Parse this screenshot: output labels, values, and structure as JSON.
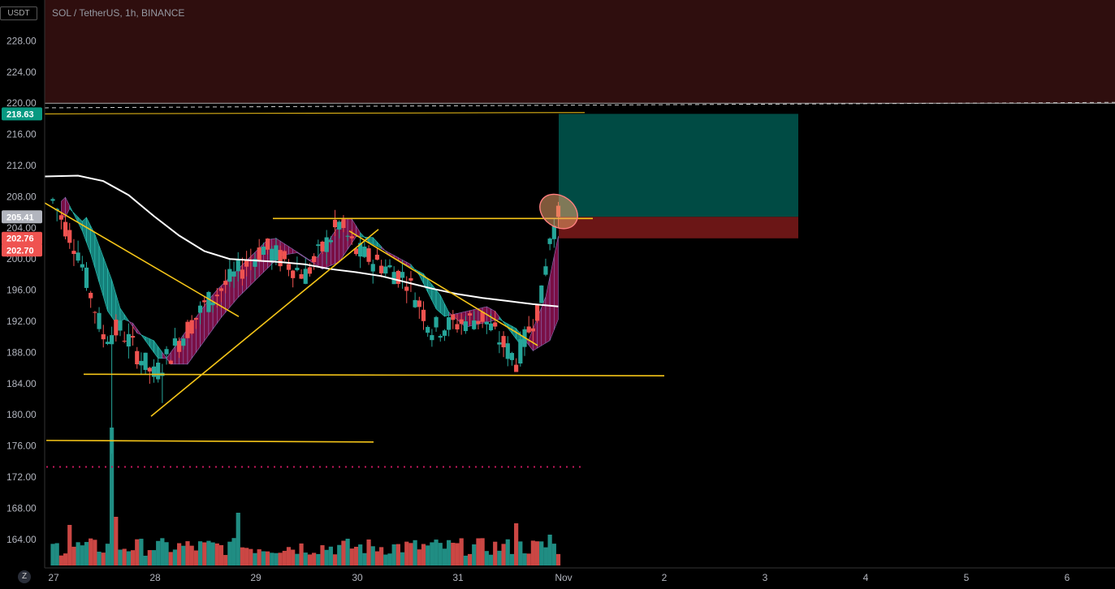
{
  "header": {
    "title": "SOL / TetherUS, 1h, BINANCE",
    "currency": "USDT",
    "scale_button": "Z"
  },
  "colors": {
    "background": "#000000",
    "up": "#26a69a",
    "down": "#ef5350",
    "cloud_bear": "#7a0f45",
    "cloud_bull": "#15807a",
    "ma": "#ffffff",
    "trendline": "#f5c518",
    "target_zone": "#004b44",
    "stop_zone": "#6b1616",
    "resistance_zone": "#2f0e0e"
  },
  "chart_data": {
    "type": "candlestick",
    "symbol": "SOL / TetherUS",
    "interval": "1h",
    "exchange": "BINANCE",
    "y_ticks": [
      "228.00",
      "224.00",
      "220.00",
      "216.00",
      "212.00",
      "208.00",
      "204.00",
      "200.00",
      "196.00",
      "192.00",
      "188.00",
      "184.00",
      "180.00",
      "176.00",
      "172.00",
      "168.00",
      "164.00"
    ],
    "ylim": [
      160,
      230
    ],
    "x_ticks": [
      "27",
      "28",
      "29",
      "30",
      "31",
      "Nov",
      "2",
      "3",
      "4",
      "5",
      "6"
    ],
    "price_labels": [
      {
        "value": "218.63",
        "color": "#089981"
      },
      {
        "value": "205.41",
        "color": "#b2b5be"
      },
      {
        "value": "202.76",
        "color": "#ef5350"
      },
      {
        "value": "202.70",
        "color": "#ef5350"
      }
    ],
    "ohlc_keypoints": [
      {
        "t": "27 00:00",
        "close": 207.5
      },
      {
        "t": "27 06:00",
        "close": 201.0
      },
      {
        "t": "27 12:00",
        "close": 190.0
      },
      {
        "t": "27 14:00",
        "low": 175.0
      },
      {
        "t": "28 00:00",
        "close": 185.0
      },
      {
        "t": "28 02:00",
        "low": 181.5
      },
      {
        "t": "28 12:00",
        "close": 194.0
      },
      {
        "t": "29 02:00",
        "close": 201.5
      },
      {
        "t": "29 12:00",
        "close": 198.0
      },
      {
        "t": "29 20:00",
        "close": 204.5
      },
      {
        "t": "30 00:00",
        "close": 201.0
      },
      {
        "t": "30 12:00",
        "close": 197.5
      },
      {
        "t": "30 18:00",
        "close": 191.0
      },
      {
        "t": "31 06:00",
        "close": 192.5
      },
      {
        "t": "31 14:00",
        "low": 186.0
      },
      {
        "t": "31 20:00",
        "close": 195.0
      },
      {
        "t": "31 22:00",
        "close": 202.7
      },
      {
        "t": "Nov 00:00",
        "close": 205.4
      }
    ],
    "levels": {
      "resistance_zone": [
        220,
        232
      ],
      "target": 218.63,
      "entry": 205.41,
      "stop": 202.7,
      "support": 185.1,
      "low_line": 176.7,
      "dotted_level": 173.3
    }
  }
}
